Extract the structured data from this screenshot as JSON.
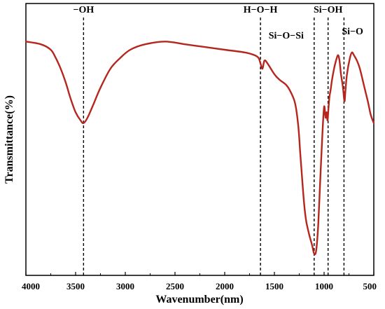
{
  "chart_data": {
    "type": "line",
    "title": "",
    "xlabel": "Wavenumber(nm)",
    "ylabel": "Transmittance(%)",
    "xlim": [
      4000,
      500
    ],
    "x_reversed": true,
    "ylim": [
      0,
      100
    ],
    "y_ticks_shown": false,
    "grid": false,
    "legend": "none",
    "x_ticks": [
      4000,
      3500,
      3000,
      2500,
      2000,
      1500,
      1000,
      500
    ],
    "x_tick_labels": [
      "4000",
      "3500",
      "3000",
      "2500",
      "2000",
      "1500",
      "1000",
      "500"
    ],
    "series": [
      {
        "name": "",
        "color": "#b5271e",
        "x": [
          4000,
          3850,
          3750,
          3700,
          3650,
          3600,
          3550,
          3500,
          3450,
          3420,
          3380,
          3320,
          3250,
          3150,
          3050,
          2950,
          2800,
          2600,
          2400,
          2200,
          2000,
          1800,
          1700,
          1660,
          1640,
          1620,
          1600,
          1570,
          1500,
          1450,
          1380,
          1330,
          1290,
          1260,
          1240,
          1220,
          1200,
          1180,
          1150,
          1120,
          1100,
          1080,
          1060,
          1040,
          1020,
          1000,
          985,
          975,
          965,
          955,
          945,
          935,
          920,
          900,
          880,
          860,
          845,
          830,
          810,
          795,
          785,
          770,
          740,
          720,
          700,
          670,
          640,
          600,
          560,
          530,
          500
        ],
        "y": [
          86,
          85,
          83,
          80,
          76,
          71,
          65,
          60,
          57,
          56,
          58,
          63,
          69,
          76,
          80,
          83,
          85,
          86,
          85,
          84,
          83,
          82,
          81,
          80,
          78,
          76,
          79,
          78,
          74,
          72,
          70,
          67,
          63,
          55,
          45,
          35,
          26,
          20,
          15,
          11,
          8,
          9,
          18,
          34,
          50,
          62,
          58,
          60,
          57,
          62,
          66,
          68,
          72,
          76,
          79,
          81,
          79,
          74,
          69,
          64,
          68,
          74,
          80,
          82,
          81,
          79,
          76,
          70,
          64,
          59,
          56
        ]
      }
    ],
    "annotations": [
      {
        "label": "−OH",
        "x": 3420
      },
      {
        "label": "H−O−H",
        "x": 1640
      },
      {
        "label": "Si−O−Si",
        "x": 1100
      },
      {
        "label": "Si−OH",
        "x": 960
      },
      {
        "label": "Si−O",
        "x": 800
      }
    ]
  }
}
